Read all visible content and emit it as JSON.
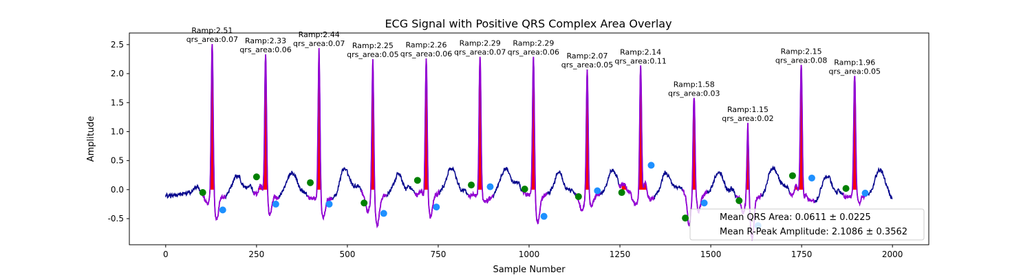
{
  "chart_data": {
    "type": "line",
    "title": "ECG Signal with Positive QRS Complex Area Overlay",
    "xlabel": "Sample Number",
    "ylabel": "Amplitude",
    "xlim": [
      -100,
      2100
    ],
    "ylim": [
      -0.95,
      2.7
    ],
    "x_ticks": [
      0,
      250,
      500,
      750,
      1000,
      1250,
      1500,
      1750,
      2000
    ],
    "y_ticks": [
      -0.5,
      0.0,
      0.5,
      1.0,
      1.5,
      2.0,
      2.5
    ],
    "grid": false,
    "legend_position": "lower-right",
    "colors": {
      "signal": "#00008b",
      "qrs_segment": "#9400d3",
      "area_fill": "#ff0000",
      "q_marker": "#008000",
      "s_marker": "#1e90ff"
    },
    "beats": [
      {
        "r_x": 128,
        "r_amp": 2.51,
        "area": 0.07,
        "q_x": 102,
        "q_y": -0.05,
        "s_x": 157,
        "s_y": -0.35
      },
      {
        "r_x": 275,
        "r_amp": 2.33,
        "area": 0.06,
        "q_x": 250,
        "q_y": 0.22,
        "s_x": 303,
        "s_y": -0.25
      },
      {
        "r_x": 422,
        "r_amp": 2.44,
        "area": 0.07,
        "q_x": 398,
        "q_y": 0.12,
        "s_x": 450,
        "s_y": -0.25
      },
      {
        "r_x": 570,
        "r_amp": 2.25,
        "area": 0.05,
        "q_x": 546,
        "q_y": -0.23,
        "s_x": 600,
        "s_y": -0.41
      },
      {
        "r_x": 717,
        "r_amp": 2.26,
        "area": 0.06,
        "q_x": 693,
        "q_y": 0.16,
        "s_x": 745,
        "s_y": -0.3
      },
      {
        "r_x": 865,
        "r_amp": 2.29,
        "area": 0.07,
        "q_x": 841,
        "q_y": 0.08,
        "s_x": 893,
        "s_y": 0.05
      },
      {
        "r_x": 1012,
        "r_amp": 2.29,
        "area": 0.06,
        "q_x": 988,
        "q_y": 0.01,
        "s_x": 1041,
        "s_y": -0.46
      },
      {
        "r_x": 1160,
        "r_amp": 2.07,
        "area": 0.05,
        "q_x": 1136,
        "q_y": -0.12,
        "s_x": 1188,
        "s_y": -0.02
      },
      {
        "r_x": 1307,
        "r_amp": 2.14,
        "area": 0.11,
        "q_x": 1255,
        "q_y": -0.05,
        "s_x": 1336,
        "s_y": 0.42
      },
      {
        "r_x": 1454,
        "r_amp": 1.58,
        "area": 0.03,
        "q_x": 1430,
        "q_y": -0.49,
        "s_x": 1482,
        "s_y": -0.23
      },
      {
        "r_x": 1602,
        "r_amp": 1.15,
        "area": 0.02,
        "q_x": 1578,
        "q_y": -0.19,
        "s_x": 1630,
        "s_y": -0.62
      },
      {
        "r_x": 1749,
        "r_amp": 2.15,
        "area": 0.08,
        "q_x": 1725,
        "q_y": 0.24,
        "s_x": 1778,
        "s_y": 0.2
      },
      {
        "r_x": 1896,
        "r_amp": 1.96,
        "area": 0.05,
        "q_x": 1872,
        "q_y": 0.02,
        "s_x": 1925,
        "s_y": -0.06
      }
    ],
    "annotation_prefix_amp": "Ramp:",
    "annotation_prefix_area": "qrs_area:",
    "legend": [
      {
        "label": "Mean QRS Area: 0.0611 ± 0.0225"
      },
      {
        "label": "Mean R-Peak Amplitude: 2.1086 ± 0.3562"
      }
    ]
  }
}
